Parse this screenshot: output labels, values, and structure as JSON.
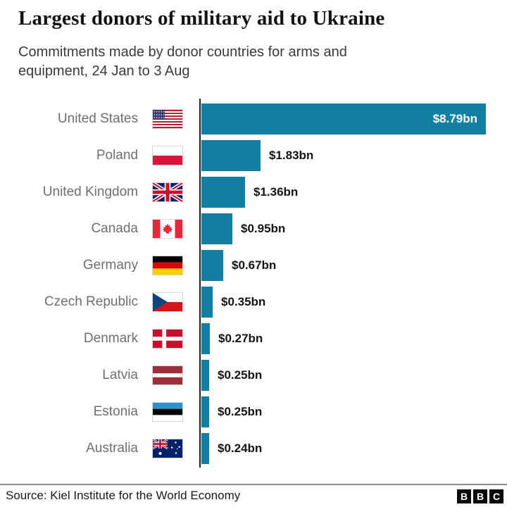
{
  "header": {
    "title": "Largest donors of military aid to Ukraine",
    "subtitle": "Commitments made by donor countries for arms and equipment, 24 Jan to 3 Aug"
  },
  "chart_data": {
    "type": "bar",
    "orientation": "horizontal",
    "title": "Largest donors of military aid to Ukraine",
    "unit": "US$ billions",
    "xlim": [
      0,
      9.45
    ],
    "grid": false,
    "legend": false,
    "bar_color": "#1380A1",
    "categories": [
      "United States",
      "Poland",
      "United Kingdom",
      "Canada",
      "Germany",
      "Czech Republic",
      "Denmark",
      "Latvia",
      "Estonia",
      "Australia"
    ],
    "values": [
      8.79,
      1.83,
      1.36,
      0.95,
      0.67,
      0.35,
      0.27,
      0.25,
      0.25,
      0.24
    ],
    "value_labels": [
      "$8.79bn",
      "$1.83bn",
      "$1.36bn",
      "$0.95bn",
      "$0.67bn",
      "$0.35bn",
      "$0.27bn",
      "$0.25bn",
      "$0.25bn",
      "$0.24bn"
    ],
    "flags": [
      "us",
      "pl",
      "gb",
      "ca",
      "de",
      "cz",
      "dk",
      "lv",
      "ee",
      "au"
    ]
  },
  "footer": {
    "source": "Source: Kiel Institute for the World Economy",
    "logo_letters": [
      "B",
      "B",
      "C"
    ]
  }
}
